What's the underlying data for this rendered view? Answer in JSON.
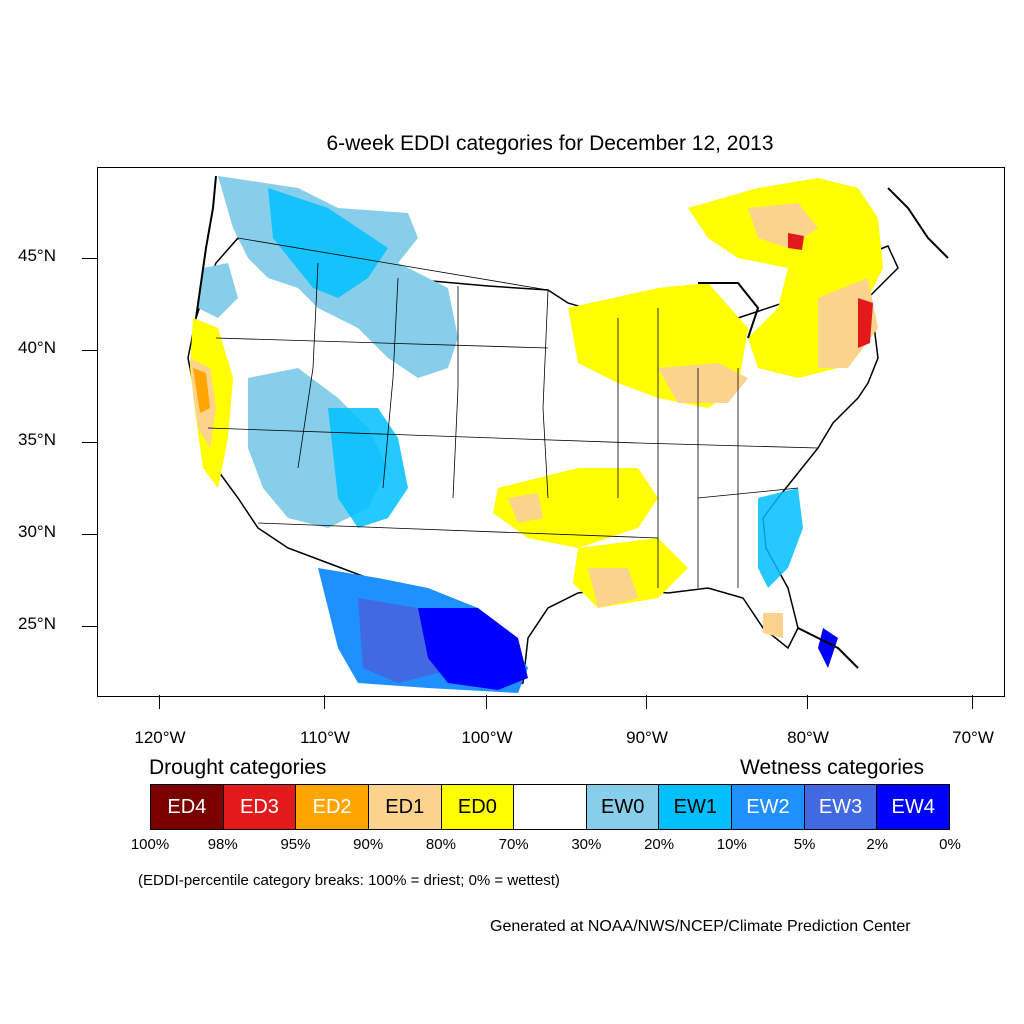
{
  "title": "6-week EDDI categories for December 12, 2013",
  "lat_labels": [
    "45°N",
    "40°N",
    "35°N",
    "30°N",
    "25°N"
  ],
  "lon_labels": [
    "120°W",
    "110°W",
    "100°W",
    "90°W",
    "80°W",
    "70°W"
  ],
  "drought_heading": "Drought categories",
  "wetness_heading": "Wetness categories",
  "legend": [
    {
      "label": "ED4",
      "color": "#7a0000",
      "text_color": "#ffffff"
    },
    {
      "label": "ED3",
      "color": "#e31a1c",
      "text_color": "#ffffff"
    },
    {
      "label": "ED2",
      "color": "#ffa500",
      "text_color": "#ffffff"
    },
    {
      "label": "ED1",
      "color": "#fcd38c",
      "text_color": "#000000"
    },
    {
      "label": "ED0",
      "color": "#ffff00",
      "text_color": "#000000"
    },
    {
      "label": "",
      "color": "#ffffff",
      "text_color": "#000000"
    },
    {
      "label": "EW0",
      "color": "#87ceeb",
      "text_color": "#000000"
    },
    {
      "label": "EW1",
      "color": "#00bfff",
      "text_color": "#000000"
    },
    {
      "label": "EW2",
      "color": "#1e90ff",
      "text_color": "#ffffff"
    },
    {
      "label": "EW3",
      "color": "#4169e1",
      "text_color": "#ffffff"
    },
    {
      "label": "EW4",
      "color": "#0000ff",
      "text_color": "#ffffff"
    }
  ],
  "percent_breaks": [
    "100%",
    "98%",
    "95%",
    "90%",
    "80%",
    "70%",
    "30%",
    "20%",
    "10%",
    "5%",
    "2%",
    "0%"
  ],
  "note": "(EDDI-percentile category breaks: 100% = driest; 0% = wettest)",
  "credit": "Generated at NOAA/NWS/NCEP/Climate Prediction Center"
}
